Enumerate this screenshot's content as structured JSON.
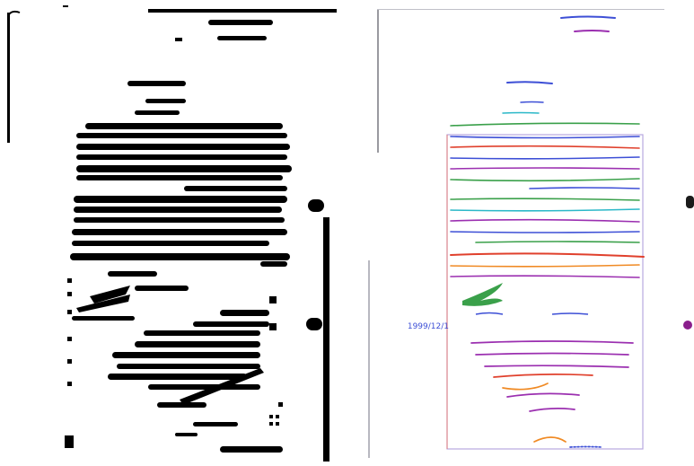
{
  "images": [
    {
      "label": "binarized-document-scan",
      "description_colors": {
        "ink": "#000000",
        "paper": "#ffffff"
      }
    },
    {
      "label": "original-handwritten-letter",
      "description_colors": {
        "paper": "#ffffff",
        "blue_ink": "#3d4fd6",
        "purple_ink": "#9b2fb0",
        "green_ink": "#3aa04a",
        "red_ink": "#e0402c",
        "orange_ink": "#f08a24",
        "cyan_ink": "#2bb8c8",
        "magenta_dot": "#8a1e8c"
      }
    }
  ],
  "visible_text": {
    "date_line": "1999/12/1"
  }
}
